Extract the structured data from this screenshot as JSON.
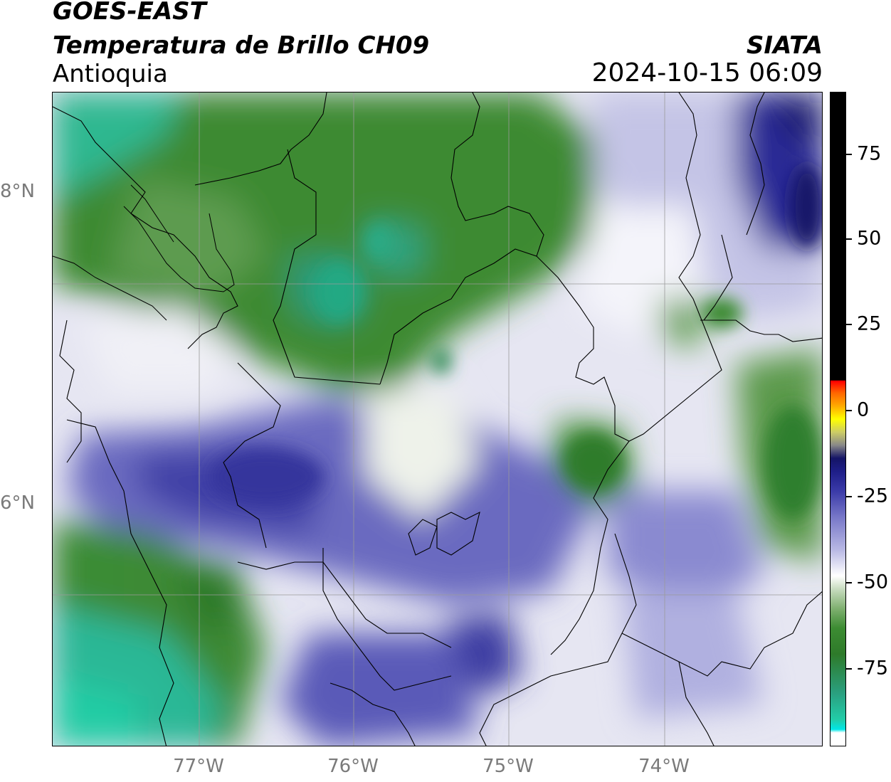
{
  "header": {
    "title_line1": "GOES-EAST",
    "title_line2": "Temperatura de Brillo CH09",
    "subtitle": "Antioquia",
    "brand": "SIATA",
    "timestamp": "2024-10-15 06:09"
  },
  "map": {
    "lat_labels": [
      "8°N",
      "6°N"
    ],
    "lon_labels": [
      "77°W",
      "76°W",
      "75°W",
      "74°W"
    ]
  },
  "colorbar": {
    "ticks": [
      "75",
      "50",
      "25",
      "0",
      "-25",
      "-50",
      "-75"
    ],
    "colors": {
      "black": "#000000",
      "red": "#ff0000",
      "orange": "#ff9900",
      "yellow": "#ffff00",
      "dark_navy": "#141466",
      "blue": "#2b2b99",
      "lavender": "#aaaadd",
      "white": "#ffffff",
      "light_green": "#c8dcc0",
      "green": "#3c8c32",
      "dark_green": "#2e7a2a",
      "teal": "#24c8a0",
      "cyan": "#00e6e6"
    }
  }
}
